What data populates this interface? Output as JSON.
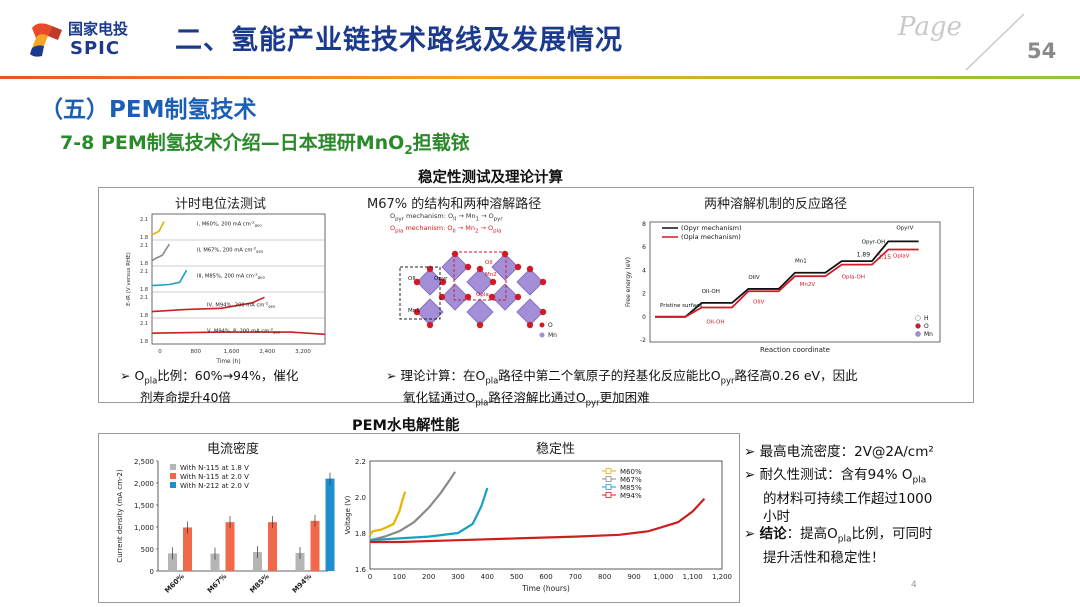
{
  "header": {
    "logo_cn": "国家电投",
    "logo_en": "SPIC",
    "title": "二、氢能产业链技术路线及发展情况",
    "page_label": "Page",
    "page_number": "54"
  },
  "section": {
    "heading": "（五）PEM制氢技术",
    "subheading_pre": "7-8 PEM制氢技术介绍—日本理研MnO",
    "subheading_sub": "2",
    "subheading_post": "担载铱"
  },
  "panel_top": {
    "title": "稳定性测试及理论计算",
    "sub1": "计时电位法测试",
    "sub2": "M67% 的结构和两种溶解路径",
    "sub3": "两种溶解机制的反应路径",
    "bullet1": {
      "marker": "➢",
      "a": "O",
      "sub": "pla",
      "b": "比例：60%→94%，催化",
      "line2": "剂寿命提升40倍"
    },
    "bullet2": {
      "marker": "➢",
      "a": "理论计算：在O",
      "sub1": "pla",
      "b": "路径中第二个氧原子的羟基化反应能比O",
      "sub2": "pyr",
      "c": "路径高0.26 eV，因此",
      "line2a": "氧化锰通过O",
      "sub3": "pla",
      "line2b": "路径溶解比通过O",
      "sub4": "pyr",
      "line2c": "更加困难"
    }
  },
  "chrono": {
    "ylabel": "E-iR (V versus RHE)",
    "xlabel": "Time (h)",
    "xticks": [
      "0",
      "800",
      "1,600",
      "2,400",
      "3,200"
    ],
    "yticks": [
      "2.1",
      "1.8"
    ],
    "curves": [
      {
        "label": "I, M60%, 200 mA cm",
        "color": "#e0b400"
      },
      {
        "label": "II, M67%, 200 mA cm",
        "color": "#8a8a8a"
      },
      {
        "label": "III, M85%, 200 mA cm",
        "color": "#1aa0c0"
      },
      {
        "label": "IV, M94%, 200 mA cm",
        "color": "#cc2020"
      },
      {
        "label": "V, M94%, P, 200 mA cm",
        "color": "#cc2020"
      }
    ],
    "sup": "-2",
    "subs": "geo"
  },
  "structure": {
    "mech1": "O<sub>pyr</sub> mechanism: O<sub>II</sub> → Mn<sub>1</sub> → O<sub>pyr</sub>",
    "mech2": "O<sub>pla</sub> mechanism: O<sub>II</sub> → Mn<sub>2</sub> → O<sub>pla</sub>",
    "atoms": [
      "O<sub>II</sub>",
      "O<sub>pyr</sub>",
      "O<sub>pla</sub>",
      "O<sub>II</sub>",
      "Mn<sub>1</sub>",
      "Mn<sub>2</sub>"
    ],
    "legend_o": "O",
    "legend_mn": "Mn"
  },
  "energy": {
    "ylabel": "Free energy (eV)",
    "xlabel": "Reaction coordinate",
    "yticks": [
      "8",
      "6",
      "4",
      "2",
      "0",
      "-2"
    ],
    "legend_pyr": "(O<sub>pyr</sub> mechanism)",
    "legend_pla": "(O<sub>pla</sub> mechanism)",
    "labels": [
      "Pristine surface",
      "O<sub>II</sub>-OH",
      "O<sub>II</sub>V",
      "Mn<sub>1</sub>",
      "O<sub>pyr</sub>-OH",
      "O<sub>pyr</sub>V",
      "O<sub>II</sub>-OH",
      "O<sub>II</sub>V",
      "Mn<sub>2</sub>V",
      "O<sub>pla</sub>-OH",
      "O<sub>pla</sub>V"
    ],
    "annot1": "1.89",
    "annot2": "2.15",
    "legend": [
      "H",
      "O",
      "Mn"
    ]
  },
  "panel_bottom": {
    "title": "PEM水电解性能",
    "sub1": "电流密度",
    "sub2": "稳定性"
  },
  "chart_data": [
    {
      "type": "bar",
      "title": "电流密度",
      "ylabel": "Current density (mA cm-2)",
      "categories": [
        "M60%",
        "M67%",
        "M85%",
        "M94%"
      ],
      "series": [
        {
          "name": "With N-115 at 1.8 V",
          "values": [
            400,
            395,
            430,
            410
          ],
          "color": "#b5b5b5"
        },
        {
          "name": "With N-115 at 2.0 V",
          "values": [
            990,
            1110,
            1110,
            1140
          ],
          "color": "#f0694a"
        },
        {
          "name": "With N-212 at 2.0 V",
          "values": [
            null,
            null,
            null,
            2100
          ],
          "color": "#1e8fcc"
        }
      ],
      "ylim": [
        0,
        2500
      ],
      "yticks": [
        "0",
        "500",
        "1,000",
        "1,500",
        "2,000",
        "2,500"
      ]
    },
    {
      "type": "line",
      "title": "稳定性",
      "xlabel": "Time (hours)",
      "ylabel": "Voltage (V)",
      "xlim": [
        0,
        1200
      ],
      "ylim": [
        1.6,
        2.2
      ],
      "xticks": [
        "0",
        "100",
        "200",
        "300",
        "400",
        "500",
        "600",
        "700",
        "800",
        "900",
        "1,000",
        "1,100",
        "1,200"
      ],
      "yticks": [
        "1.6",
        "1.8",
        "2.0",
        "2.2"
      ],
      "series": [
        {
          "name": "M60%",
          "color": "#e8b400",
          "x": [
            0,
            10,
            40,
            80,
            100,
            110,
            120
          ],
          "y": [
            1.79,
            1.81,
            1.82,
            1.85,
            1.92,
            1.98,
            2.03
          ]
        },
        {
          "name": "M67%",
          "color": "#8a8a8a",
          "x": [
            0,
            50,
            100,
            150,
            200,
            240,
            270,
            290
          ],
          "y": [
            1.76,
            1.78,
            1.81,
            1.86,
            1.94,
            2.02,
            2.09,
            2.14
          ]
        },
        {
          "name": "M85%",
          "color": "#1aa0c0",
          "x": [
            0,
            100,
            200,
            300,
            350,
            380,
            400
          ],
          "y": [
            1.76,
            1.77,
            1.78,
            1.8,
            1.85,
            1.95,
            2.05
          ]
        },
        {
          "name": "M94%",
          "color": "#cc2020",
          "x": [
            0,
            100,
            300,
            500,
            700,
            850,
            950,
            1050,
            1100,
            1140
          ],
          "y": [
            1.75,
            1.75,
            1.76,
            1.77,
            1.78,
            1.79,
            1.81,
            1.86,
            1.92,
            1.99
          ]
        }
      ]
    }
  ],
  "right_bullets": {
    "b1": {
      "marker": "➢",
      "text": "最高电流密度：2V@2A/cm²"
    },
    "b2": {
      "marker": "➢",
      "a": "耐久性测试：含有94% O",
      "sub": "pla",
      "line2": "的材料可持续工作超过1000",
      "line3": "小时"
    },
    "b3": {
      "marker": "➢",
      "bold": "结论",
      "a": "：提高O",
      "sub": "pla",
      "b": "比例，可同时",
      "line2": "提升活性和稳定性！"
    }
  },
  "footer_num": "4"
}
